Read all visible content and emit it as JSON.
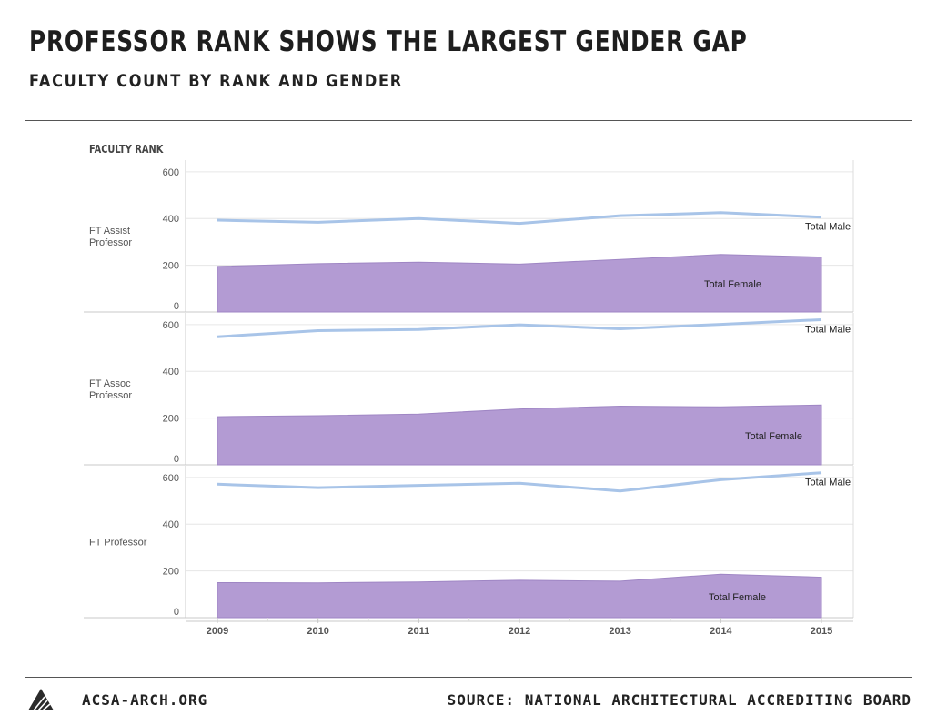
{
  "header": {
    "title": "PROFESSOR RANK SHOWS THE LARGEST GENDER GAP",
    "subtitle": "FACULTY COUNT BY RANK AND GENDER"
  },
  "footer": {
    "org": "ACSA-ARCH.ORG",
    "source": "SOURCE: NATIONAL ARCHITECTURAL ACCREDITING BOARD"
  },
  "colors": {
    "male_line": "#a8c4e8",
    "female_area": "#b39bd3",
    "female_edge": "#9f86c4",
    "grid": "#e6e6e6",
    "axis_text": "#555555"
  },
  "chart_data": {
    "type": "area",
    "title": "PROFESSOR RANK SHOWS THE LARGEST GENDER GAP",
    "subtitle": "FACULTY COUNT BY RANK AND GENDER",
    "row_header": "FACULTY RANK",
    "x": [
      "2009",
      "2010",
      "2011",
      "2012",
      "2013",
      "2014",
      "2015"
    ],
    "ylim": [
      0,
      650
    ],
    "yticks": [
      "0",
      "200",
      "400",
      "600"
    ],
    "grid": true,
    "panels": [
      {
        "rank": "FT Assist Professor",
        "rank_lines": [
          "FT Assist",
          "Professor"
        ],
        "series": [
          {
            "name": "Total Male",
            "type": "line",
            "values": [
              393,
              384,
              400,
              379,
              412,
              425,
              406
            ]
          },
          {
            "name": "Total Female",
            "type": "area",
            "values": [
              195,
              207,
              213,
              205,
              225,
              246,
              235
            ]
          }
        ]
      },
      {
        "rank": "FT Assoc Professor",
        "rank_lines": [
          "FT Assoc",
          "Professor"
        ],
        "series": [
          {
            "name": "Total Male",
            "type": "line",
            "values": [
              548,
              574,
              579,
              599,
              582,
              601,
              621
            ]
          },
          {
            "name": "Total Female",
            "type": "area",
            "values": [
              206,
              210,
              217,
              239,
              251,
              248,
              256
            ]
          }
        ]
      },
      {
        "rank": "FT Professor",
        "rank_lines": [
          "FT Professor"
        ],
        "series": [
          {
            "name": "Total Male",
            "type": "line",
            "values": [
              571,
              556,
              566,
              575,
              542,
              590,
              620
            ]
          },
          {
            "name": "Total Female",
            "type": "area",
            "values": [
              150,
              149,
              153,
              160,
              156,
              186,
              173
            ]
          }
        ]
      }
    ]
  }
}
